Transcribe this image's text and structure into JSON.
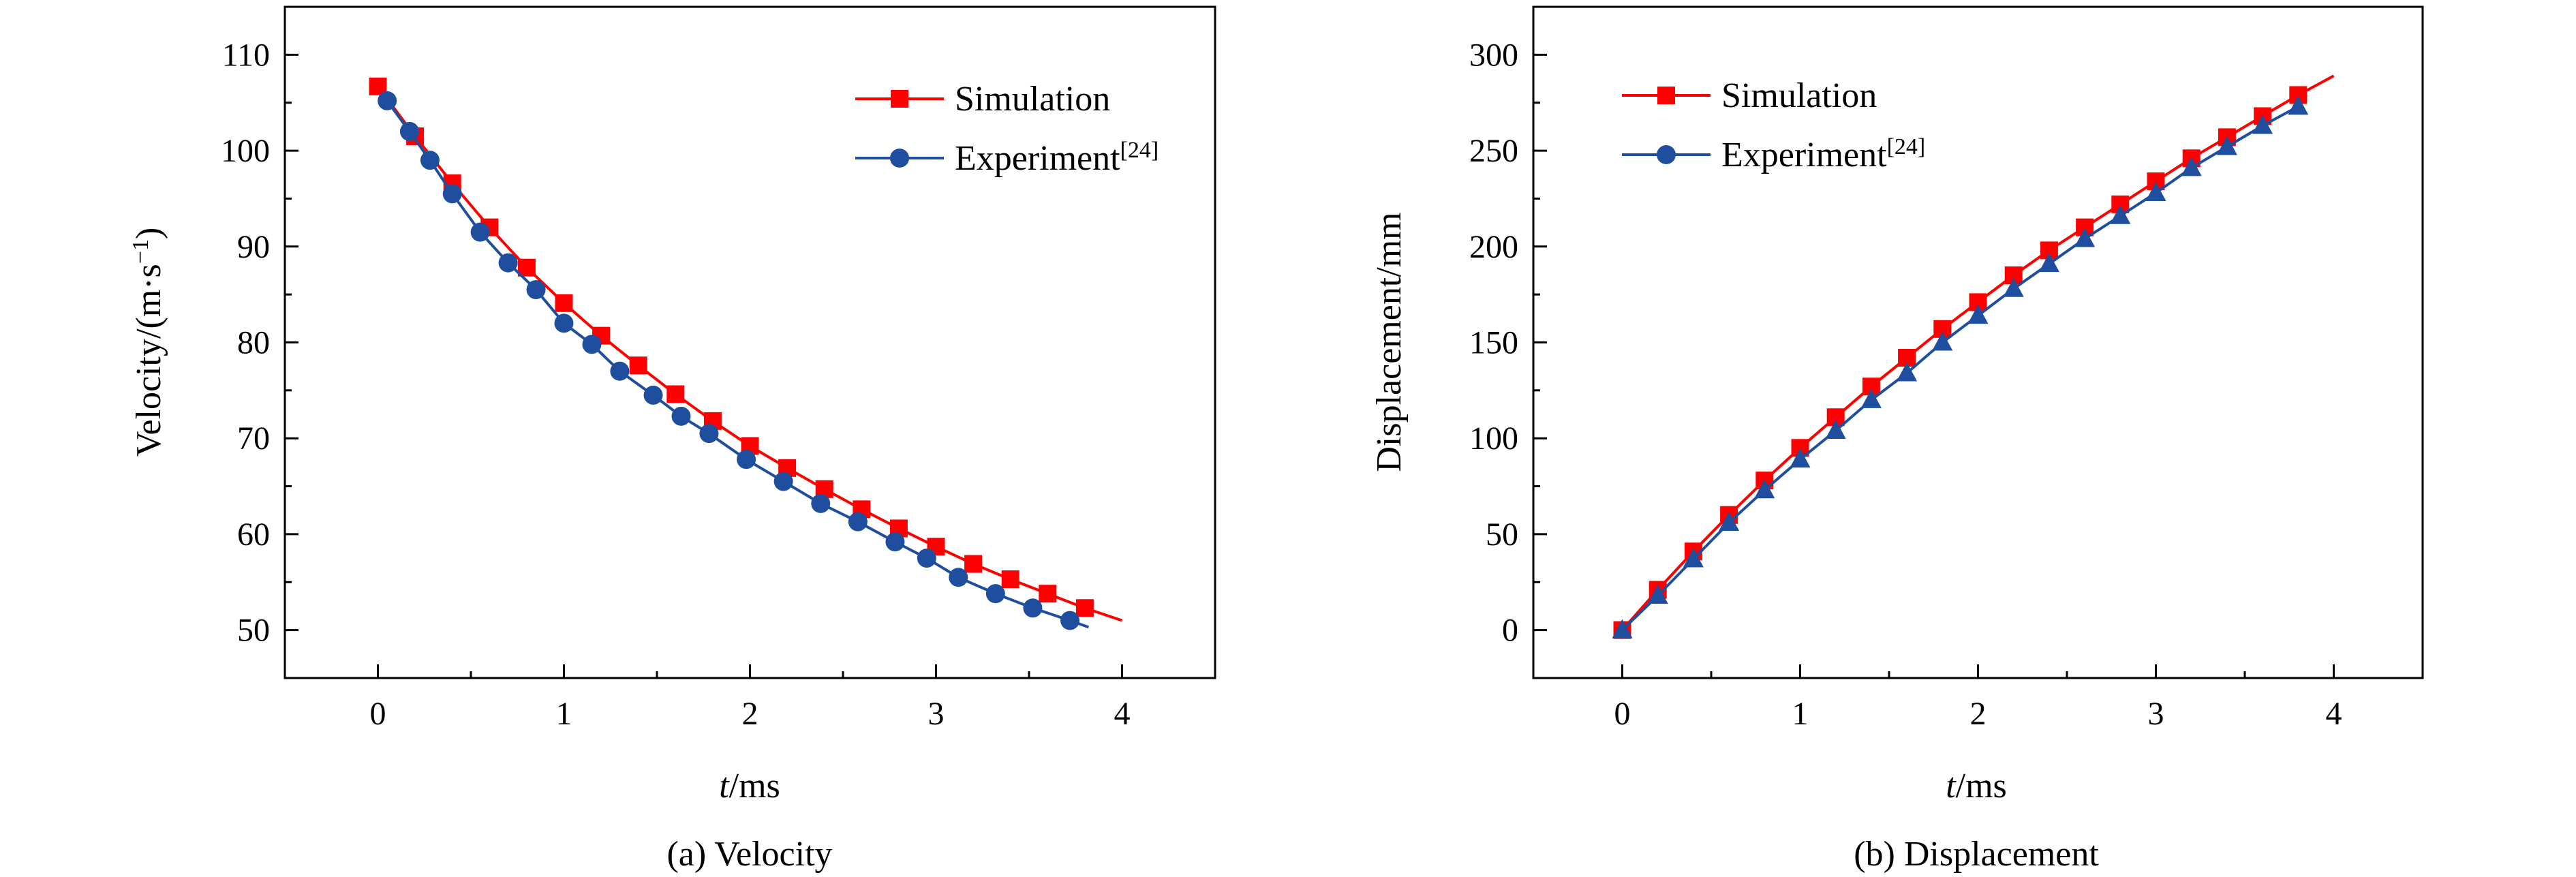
{
  "chart_data": [
    {
      "type": "line",
      "caption": "(a) Velocity",
      "xlabel_italic": "t",
      "xlabel_rest": "/ms",
      "ylabel": "Velocity/(m·s",
      "ylabel_sup": "−1",
      "ylabel_close": ")",
      "xlim": [
        -0.5,
        4.5
      ],
      "ylim": [
        45,
        115
      ],
      "xticks": [
        0,
        1,
        2,
        3,
        4
      ],
      "yticks": [
        50,
        60,
        70,
        80,
        90,
        100,
        110
      ],
      "legend_position": "top-right",
      "series": [
        {
          "name": "Simulation",
          "color": "#ff0000",
          "marker": "square",
          "x": [
            0,
            0.2,
            0.4,
            0.6,
            0.8,
            1.0,
            1.2,
            1.4,
            1.6,
            1.8,
            2.0,
            2.2,
            2.4,
            2.6,
            2.8,
            3.0,
            3.2,
            3.4,
            3.6,
            3.8
          ],
          "y": [
            106.7,
            101.5,
            96.6,
            92.0,
            87.8,
            84.1,
            80.7,
            77.6,
            74.6,
            71.8,
            69.2,
            66.9,
            64.7,
            62.6,
            60.6,
            58.7,
            56.9,
            55.3,
            53.8,
            52.3
          ],
          "line_end": [
            4.0,
            51.0
          ]
        },
        {
          "name": "Experiment",
          "name_sup": "[24]",
          "color": "#1f4e9e",
          "marker": "circle",
          "x": [
            0.05,
            0.17,
            0.28,
            0.4,
            0.55,
            0.7,
            0.85,
            1.0,
            1.15,
            1.3,
            1.48,
            1.63,
            1.78,
            1.98,
            2.18,
            2.38,
            2.58,
            2.78,
            2.95,
            3.12,
            3.32,
            3.52,
            3.72
          ],
          "y": [
            105.2,
            102.0,
            99.0,
            95.5,
            91.5,
            88.3,
            85.5,
            82.0,
            79.8,
            77.0,
            74.5,
            72.3,
            70.5,
            67.8,
            65.5,
            63.2,
            61.3,
            59.2,
            57.5,
            55.5,
            53.8,
            52.3,
            51.0
          ],
          "line_end": [
            3.82,
            50.3
          ]
        }
      ]
    },
    {
      "type": "line",
      "caption": "(b) Displacement",
      "xlabel_italic": "t",
      "xlabel_rest": "/ms",
      "ylabel": "Displacement/mm",
      "xlim": [
        -0.5,
        4.5
      ],
      "ylim": [
        -25,
        325
      ],
      "xticks": [
        0,
        1,
        2,
        3,
        4
      ],
      "yticks": [
        0,
        50,
        100,
        150,
        200,
        250,
        300
      ],
      "legend_position": "top-left",
      "series": [
        {
          "name": "Simulation",
          "color": "#ff0000",
          "marker": "square",
          "x": [
            0,
            0.2,
            0.4,
            0.6,
            0.8,
            1.0,
            1.2,
            1.4,
            1.6,
            1.8,
            2.0,
            2.2,
            2.4,
            2.6,
            2.8,
            3.0,
            3.2,
            3.4,
            3.6,
            3.8
          ],
          "y": [
            0,
            21,
            41,
            60,
            78,
            95,
            111,
            127,
            142,
            157,
            171,
            185,
            198,
            210,
            222,
            234,
            246,
            257,
            268,
            279
          ],
          "line_end": [
            4.0,
            289
          ]
        },
        {
          "name": "Experiment",
          "name_sup": "[24]",
          "color": "#1f4e9e",
          "marker": "circle",
          "point_marker": "triangle",
          "x": [
            0,
            0.2,
            0.4,
            0.6,
            0.8,
            1.0,
            1.2,
            1.4,
            1.6,
            1.8,
            2.0,
            2.2,
            2.4,
            2.6,
            2.8,
            3.0,
            3.2,
            3.4,
            3.6,
            3.8
          ],
          "y": [
            0,
            18,
            37,
            56,
            73,
            89,
            104,
            120,
            134,
            150,
            164,
            178,
            191,
            204,
            216,
            228,
            241,
            252,
            263,
            273
          ]
        }
      ]
    }
  ]
}
